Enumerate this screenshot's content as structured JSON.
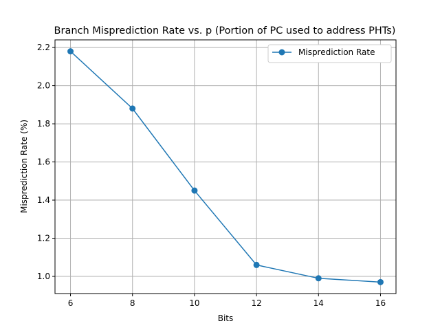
{
  "chart_data": {
    "type": "line",
    "title": "Branch Misprediction Rate vs. p (Portion of PC used to address PHTs)",
    "xlabel": "Bits",
    "ylabel": "Misprediction Rate (%)",
    "x": [
      6,
      8,
      10,
      12,
      14,
      16
    ],
    "series": [
      {
        "name": "Misprediction Rate",
        "values": [
          2.18,
          1.88,
          1.45,
          1.06,
          0.99,
          0.97
        ]
      }
    ],
    "xlim": [
      5.5,
      16.5
    ],
    "ylim": [
      0.91,
      2.24
    ],
    "xticks": [
      6,
      8,
      10,
      12,
      14,
      16
    ],
    "yticks": [
      1.0,
      1.2,
      1.4,
      1.6,
      1.8,
      2.0,
      2.2
    ],
    "ytick_labels": [
      "1.0",
      "1.2",
      "1.4",
      "1.6",
      "1.8",
      "2.0",
      "2.2"
    ],
    "grid": true,
    "legend_position": "top-right",
    "line_color": "#1f77b4",
    "marker": "circle"
  }
}
